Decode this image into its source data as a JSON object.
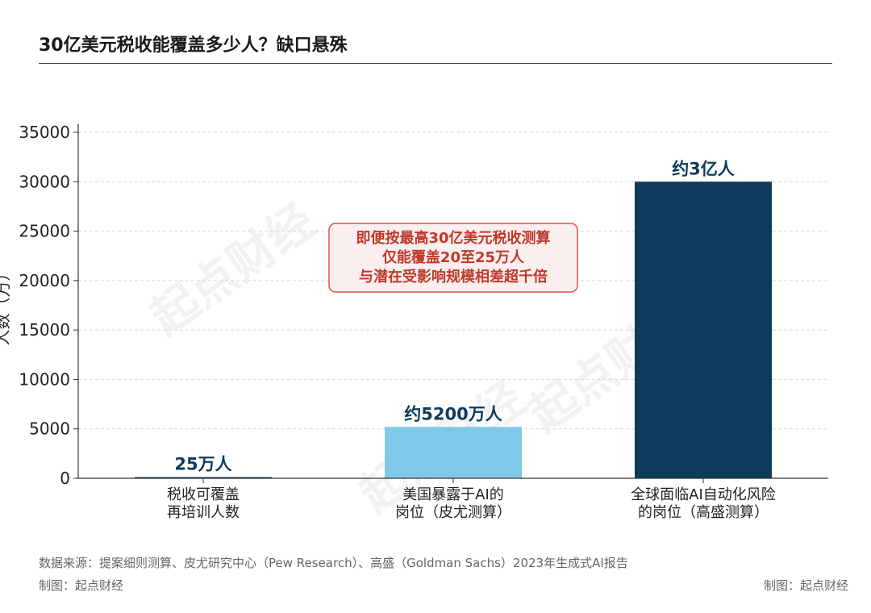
{
  "title": "30亿美元税收能覆盖多少人？缺口悬殊",
  "chart_data": {
    "type": "bar",
    "categories": [
      [
        "税收可覆盖",
        "再培训人数"
      ],
      [
        "美国暴露于AI的",
        "岗位（皮尤测算）"
      ],
      [
        "全球面临AI自动化风险",
        "的岗位（高盛测算）"
      ]
    ],
    "values": [
      25,
      5200,
      30000
    ],
    "data_labels": [
      "25万人",
      "约5200万人",
      "约3亿人"
    ],
    "colors": [
      "#0d3b5c",
      "#7fc8ea",
      "#0d3b5c"
    ],
    "ylabel": "人数（万）",
    "ylim": [
      0,
      35000
    ],
    "yticks": [
      0,
      5000,
      10000,
      15000,
      20000,
      25000,
      30000,
      35000
    ],
    "grid": true,
    "annotation": [
      "即便按最高30亿美元税收测算",
      "仅能覆盖20至25万人",
      "与潜在受影响规模相差超千倍"
    ],
    "annotation_color": "#c0392b"
  },
  "watermark": "起点财经",
  "footer": {
    "source": "数据来源：提案细则测算、皮尤研究中心（Pew Research）、高盛（Goldman Sachs）2023年生成式AI报告",
    "credit_left": "制图：起点财经",
    "credit_right": "制图：起点财经"
  }
}
